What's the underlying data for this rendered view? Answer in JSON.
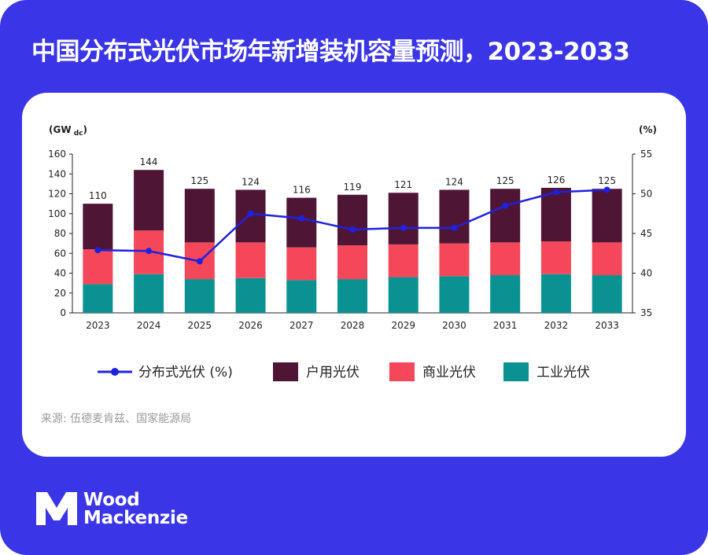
{
  "title": "中国分布式光伏市场年新增装机容量预测，2023-2033",
  "source": "来源: 伍德麦肯兹、国家能源局",
  "brand": {
    "line1": "Wood",
    "line2": "Mackenzie"
  },
  "colors": {
    "frame": "#3a35e6",
    "residential": "#4e1535",
    "commercial": "#f4485a",
    "industrial": "#0a9292",
    "line": "#2020e0"
  },
  "chart_data": {
    "type": "bar",
    "stacked": true,
    "categories": [
      "2023",
      "2024",
      "2025",
      "2026",
      "2027",
      "2028",
      "2029",
      "2030",
      "2031",
      "2032",
      "2033"
    ],
    "left_axis": {
      "unit_label": "(GWdc)",
      "unit_main": "(GW",
      "unit_sub": "dc",
      "unit_close": ")",
      "range": [
        0,
        160
      ],
      "ticks": [
        0,
        20,
        40,
        60,
        80,
        100,
        120,
        140,
        160
      ]
    },
    "right_axis": {
      "unit_label": "(%)",
      "range": [
        35,
        55
      ],
      "ticks": [
        35,
        40,
        45,
        50,
        55
      ]
    },
    "series": [
      {
        "name": "工业光伏",
        "kind": "bar",
        "axis": "left",
        "values": [
          29,
          39,
          34,
          35,
          33,
          34,
          36,
          37,
          38,
          39,
          38
        ]
      },
      {
        "name": "商业光伏",
        "kind": "bar",
        "axis": "left",
        "values": [
          35,
          44,
          37,
          36,
          33,
          34,
          33,
          33,
          33,
          33,
          33
        ]
      },
      {
        "name": "户用光伏",
        "kind": "bar",
        "axis": "left",
        "values": [
          46,
          61,
          54,
          53,
          50,
          51,
          52,
          54,
          54,
          54,
          54
        ]
      },
      {
        "name": "分布式光伏 (%)",
        "kind": "line",
        "axis": "right",
        "values": [
          42.9,
          42.8,
          41.5,
          47.5,
          46.9,
          45.5,
          45.7,
          45.7,
          48.5,
          50.2,
          50.5
        ]
      }
    ],
    "totals": [
      110,
      144,
      125,
      124,
      116,
      119,
      121,
      124,
      125,
      126,
      125
    ],
    "legend": {
      "position": "bottom",
      "order": [
        "分布式光伏 (%)",
        "户用光伏",
        "商业光伏",
        "工业光伏"
      ]
    },
    "grid": false
  }
}
